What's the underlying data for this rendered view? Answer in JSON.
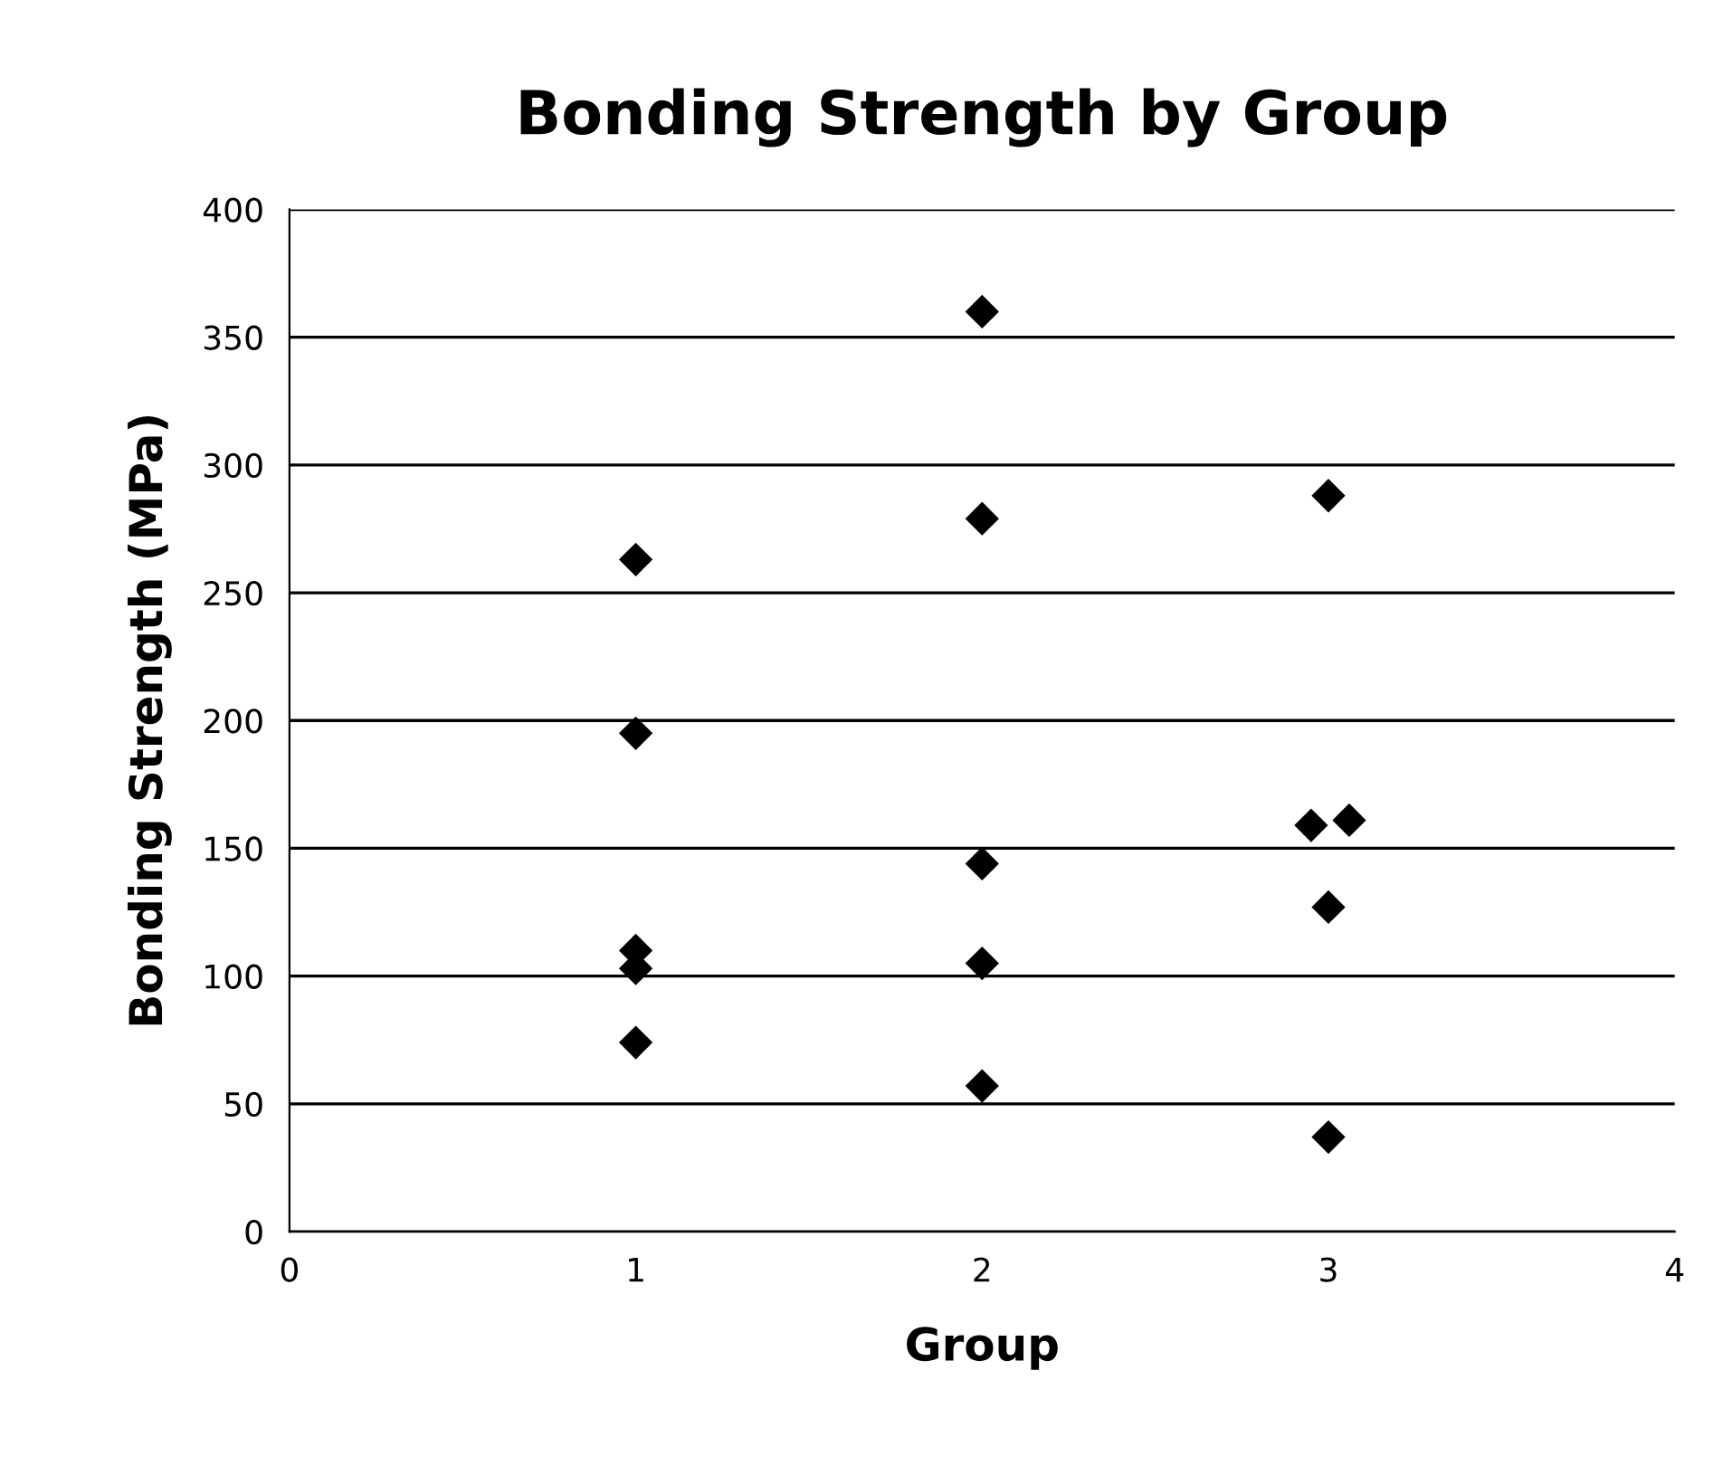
{
  "chart_data": {
    "type": "scatter",
    "title": "Bonding Strength by Group",
    "xlabel": "Group",
    "ylabel": "Bonding Strength (MPa)",
    "x": [
      1,
      1,
      1,
      1,
      1,
      2,
      2,
      2,
      2,
      2,
      2.95,
      3.06,
      3,
      3,
      3
    ],
    "series": [
      {
        "color": "#000000",
        "values": [
          263,
          195,
          110,
          103,
          74,
          360,
          279,
          144,
          105,
          57,
          159,
          161,
          288,
          127,
          37
        ]
      }
    ],
    "xlim": [
      0,
      4
    ],
    "xticks": [
      0,
      1,
      2,
      3,
      4
    ],
    "ylim": [
      0,
      400
    ],
    "yticks": [
      0,
      50,
      100,
      150,
      200,
      250,
      300,
      350,
      400
    ],
    "grid": "y",
    "marker": "diamond",
    "legend": false
  }
}
